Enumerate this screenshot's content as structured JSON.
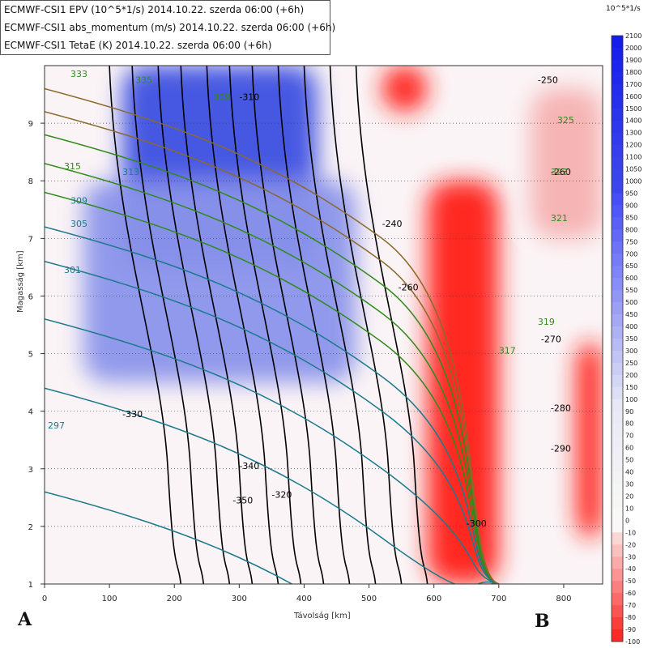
{
  "header": {
    "lines": [
      "ECMWF-CSI1 EPV (10^5*1/s) 2014.10.22. szerda 06:00 (+6h)",
      "ECMWF-CSI1 abs_momentum (m/s) 2014.10.22. szerda 06:00 (+6h)",
      "ECMWF-CSI1 TetaE (K) 2014.10.22. szerda 06:00 (+6h)"
    ]
  },
  "corner_labels": {
    "left": "A",
    "right": "B"
  },
  "colorbar": {
    "unit": "10^5*1/s",
    "ticks": [
      "2100",
      "2000",
      "1900",
      "1800",
      "1700",
      "1600",
      "1500",
      "1400",
      "1300",
      "1200",
      "1100",
      "1050",
      "1000",
      "950",
      "900",
      "850",
      "800",
      "750",
      "700",
      "650",
      "600",
      "550",
      "500",
      "450",
      "400",
      "350",
      "300",
      "250",
      "200",
      "150",
      "100",
      "90",
      "80",
      "70",
      "60",
      "50",
      "40",
      "30",
      "20",
      "10",
      "0",
      "-10",
      "-20",
      "-30",
      "-40",
      "-50",
      "-60",
      "-70",
      "-80",
      "-90",
      "-100"
    ]
  },
  "chart_data": {
    "type": "heatmap",
    "title": "",
    "xlabel": "Távolság [km]",
    "ylabel": "Magasság [km]",
    "xlim": [
      0,
      860
    ],
    "ylim": [
      1,
      10
    ],
    "x_ticks": [
      0,
      100,
      200,
      300,
      400,
      500,
      600,
      700,
      800
    ],
    "y_ticks": [
      1,
      2,
      3,
      4,
      5,
      6,
      7,
      8,
      9
    ],
    "grid": "horizontal dotted",
    "colors": {
      "positive": "#1e2ee0",
      "negative": "#ff1a10",
      "momentum": "#000000",
      "thetae_cold": "#1a7a8a",
      "thetae_warm": "#2f8a1a",
      "thetae_top": "#8a6a2a"
    },
    "epv_regions": [
      {
        "sign": "positive",
        "value": 900,
        "x_range": [
          120,
          420
        ],
        "y_range": [
          6.5,
          10
        ]
      },
      {
        "sign": "positive",
        "value": 400,
        "x_range": [
          60,
          480
        ],
        "y_range": [
          4.5,
          8
        ]
      },
      {
        "sign": "negative",
        "value": -100,
        "x_range": [
          590,
          700
        ],
        "y_range": [
          1,
          8
        ]
      },
      {
        "sign": "negative",
        "value": -100,
        "x_range": [
          820,
          860
        ],
        "y_range": [
          1.8,
          5.2
        ]
      },
      {
        "sign": "negative",
        "value": -100,
        "x_range": [
          520,
          590
        ],
        "y_range": [
          9.2,
          10
        ]
      },
      {
        "sign": "negative",
        "value": -30,
        "x_range": [
          750,
          860
        ],
        "y_range": [
          7,
          9.6
        ]
      }
    ],
    "contour_labels": {
      "abs_momentum": [
        "-250",
        "-260",
        "-240",
        "-260",
        "-270",
        "-280",
        "-290",
        "-300",
        "-310",
        "-320",
        "-330",
        "-340",
        "-350"
      ],
      "theta_e": [
        "297",
        "301",
        "305",
        "309",
        "313",
        "315",
        "317",
        "319",
        "321",
        "323",
        "325",
        "329",
        "333",
        "335"
      ]
    }
  }
}
